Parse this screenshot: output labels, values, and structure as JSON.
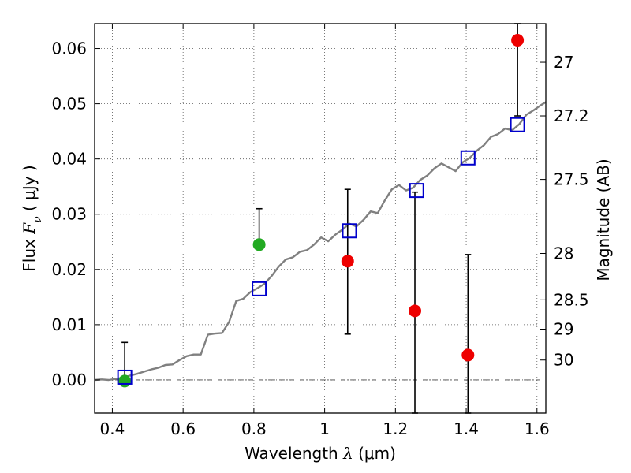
{
  "chart_data": {
    "type": "scatter",
    "title": "",
    "xlabel": "Wavelength  λ (μm)",
    "ylabel": "Flux  F_ν  ( μJy )",
    "ylabel_parts": {
      "prefix": "Flux  ",
      "symbol": "F",
      "subscript": "ν",
      "units": "  ( μJy )"
    },
    "xlabel_parts": {
      "prefix": "Wavelength  ",
      "symbol": "λ",
      "units": " (μm)"
    },
    "y2label": "Magnitude (AB)",
    "xlim": [
      0.35,
      1.625
    ],
    "ylim": [
      -0.006,
      0.0645
    ],
    "grid": true,
    "x_ticks": [
      {
        "value": 0.4,
        "label": "0.4"
      },
      {
        "value": 0.6,
        "label": "0.6"
      },
      {
        "value": 0.8,
        "label": "0.8"
      },
      {
        "value": 1.0,
        "label": "1"
      },
      {
        "value": 1.2,
        "label": "1.2"
      },
      {
        "value": 1.4,
        "label": "1.4"
      },
      {
        "value": 1.6,
        "label": "1.6"
      }
    ],
    "y_ticks": [
      {
        "value": 0.0,
        "label": "0.00"
      },
      {
        "value": 0.01,
        "label": "0.01"
      },
      {
        "value": 0.02,
        "label": "0.02"
      },
      {
        "value": 0.03,
        "label": "0.03"
      },
      {
        "value": 0.04,
        "label": "0.04"
      },
      {
        "value": 0.05,
        "label": "0.05"
      },
      {
        "value": 0.06,
        "label": "0.06"
      }
    ],
    "y2_ticks": [
      {
        "flux": 0.0575,
        "label": "27"
      },
      {
        "flux": 0.0478,
        "label": "27.2"
      },
      {
        "flux": 0.0363,
        "label": "27.5"
      },
      {
        "flux": 0.0229,
        "label": "28"
      },
      {
        "flux": 0.0145,
        "label": "28.5"
      },
      {
        "flux": 0.0092,
        "label": "29"
      },
      {
        "flux": 0.0036,
        "label": "30"
      }
    ],
    "zero_line": {
      "y": 0.0,
      "style": "dash-dot"
    },
    "colors": {
      "model": "#808080",
      "model_points": "#0000cc",
      "green": "#22aa22",
      "red": "#ee0000",
      "errorbar": "#000000",
      "grid": "#555555"
    },
    "series": [
      {
        "kind": "line",
        "x": [
          0.35,
          0.37,
          0.39,
          0.41,
          0.43,
          0.45,
          0.47,
          0.49,
          0.51,
          0.53,
          0.55,
          0.57,
          0.59,
          0.61,
          0.63,
          0.65,
          0.67,
          0.69,
          0.71,
          0.73,
          0.75,
          0.77,
          0.79,
          0.81,
          0.83,
          0.85,
          0.87,
          0.89,
          0.91,
          0.93,
          0.95,
          0.97,
          0.99,
          1.01,
          1.03,
          1.05,
          1.07,
          1.09,
          1.11,
          1.13,
          1.15,
          1.17,
          1.19,
          1.21,
          1.23,
          1.25,
          1.27,
          1.29,
          1.31,
          1.33,
          1.35,
          1.37,
          1.39,
          1.41,
          1.43,
          1.45,
          1.47,
          1.49,
          1.51,
          1.53,
          1.55,
          1.57,
          1.59,
          1.61,
          1.625
        ],
        "y": [
          0.0,
          0.0001,
          0.0,
          0.0002,
          0.0004,
          0.0008,
          0.0011,
          0.0015,
          0.0019,
          0.0022,
          0.0027,
          0.0028,
          0.0036,
          0.0043,
          0.0046,
          0.0046,
          0.0082,
          0.0084,
          0.0085,
          0.0105,
          0.0143,
          0.0147,
          0.0159,
          0.0166,
          0.0174,
          0.0188,
          0.0205,
          0.0218,
          0.0222,
          0.0232,
          0.0235,
          0.0245,
          0.0258,
          0.0251,
          0.0263,
          0.0272,
          0.0283,
          0.0278,
          0.029,
          0.0305,
          0.0302,
          0.0325,
          0.0345,
          0.0353,
          0.0343,
          0.0348,
          0.0362,
          0.037,
          0.0383,
          0.0392,
          0.0385,
          0.0378,
          0.0394,
          0.0402,
          0.0415,
          0.0425,
          0.044,
          0.0445,
          0.0455,
          0.0452,
          0.0463,
          0.048,
          0.0488,
          0.0497,
          0.0503
        ]
      },
      {
        "kind": "points",
        "marker": "open-square",
        "x": [
          0.435,
          0.815,
          1.07,
          1.26,
          1.405,
          1.545
        ],
        "y": [
          0.0005,
          0.0165,
          0.027,
          0.0343,
          0.0402,
          0.0462
        ]
      },
      {
        "kind": "points",
        "marker": "circle",
        "color": "green",
        "x": [
          0.435,
          0.815
        ],
        "y": [
          -0.0002,
          0.0245
        ],
        "yerr_low": [
          null,
          0.0245
        ],
        "yerr_high": [
          0.0068,
          0.031
        ]
      },
      {
        "kind": "points",
        "marker": "circle",
        "color": "red",
        "x": [
          1.065,
          1.255,
          1.405,
          1.545
        ],
        "y": [
          0.0215,
          0.0125,
          0.0045,
          0.0615
        ],
        "yerr_low": [
          0.0083,
          -0.006,
          -0.006,
          0.0478
        ],
        "yerr_high": [
          0.0345,
          0.034,
          0.0227,
          0.0645
        ]
      }
    ]
  }
}
